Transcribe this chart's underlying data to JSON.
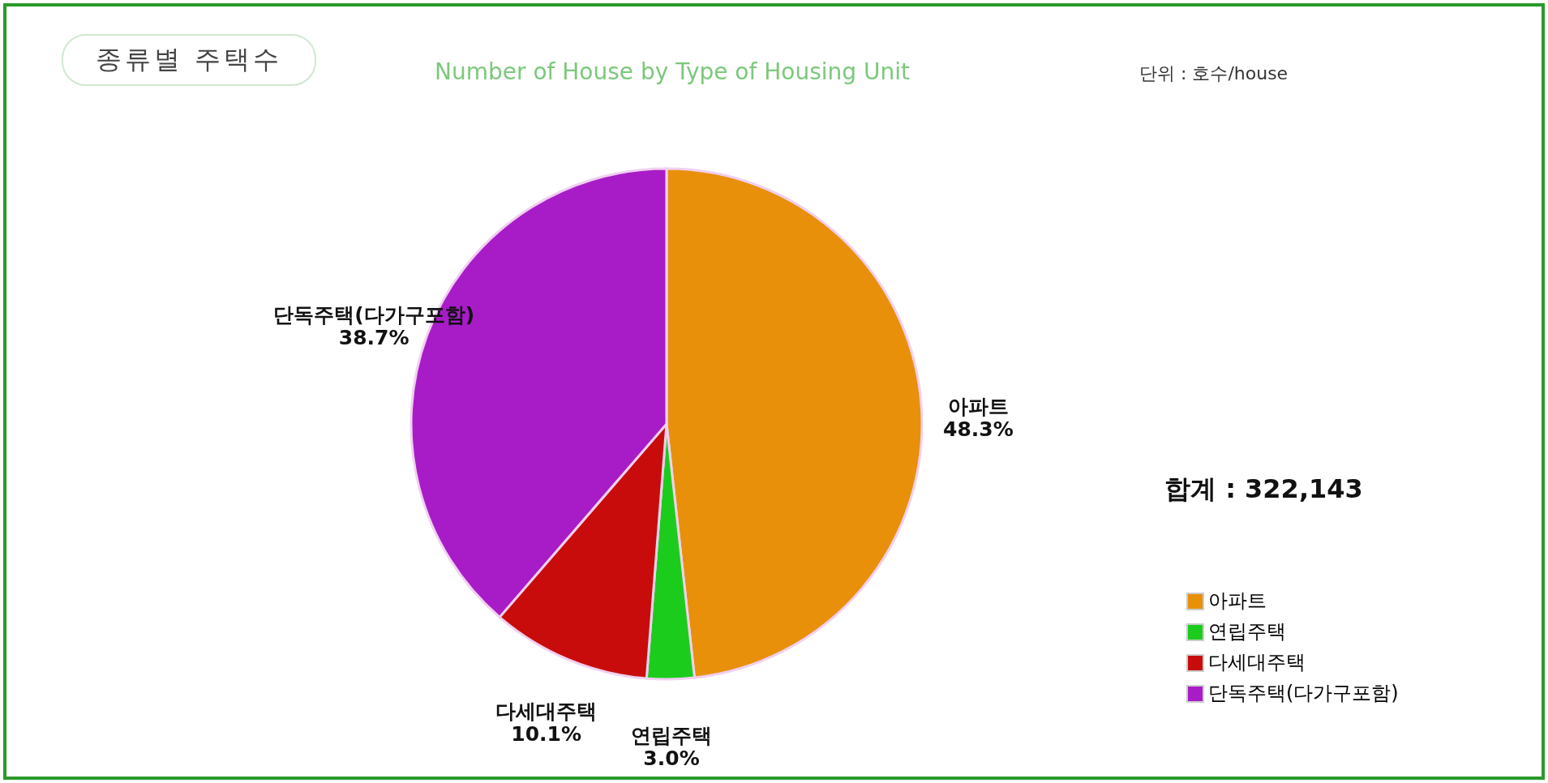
{
  "chart_data": {
    "type": "pie",
    "title": "종류별 주택수",
    "subtitle": "Number of House by Type of Housing Unit",
    "annotations": [
      "단위 : 호수/house",
      "합계 : 322,143"
    ],
    "categories": [
      "아파트",
      "연립주택",
      "다세대주택",
      "단독주택(다가구포함)"
    ],
    "values": [
      48.3,
      3.0,
      10.1,
      38.7
    ],
    "value_labels": [
      "48.3%",
      "3.0%",
      "10.1%",
      "38.7%"
    ],
    "colors": [
      "#e8900a",
      "#1ccc1c",
      "#c80c0c",
      "#a81cc8"
    ],
    "legend": "bottom right"
  }
}
